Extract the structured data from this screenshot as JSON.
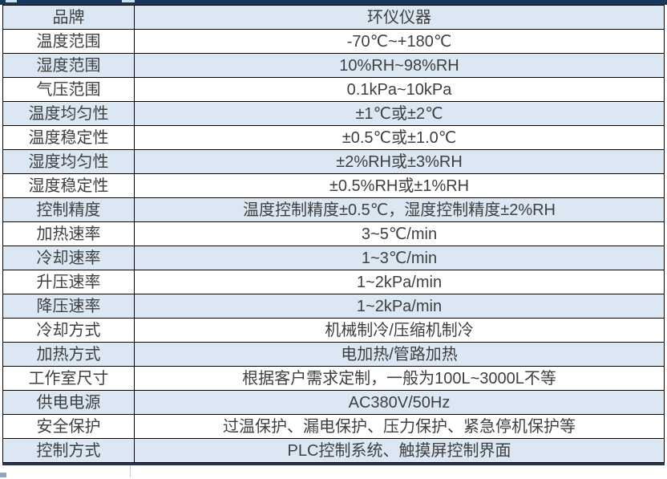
{
  "colors": {
    "banner_navy": "#17375e",
    "row_alt_blue": "#dbe8f4",
    "row_white": "#ffffff",
    "cell_border": "#000000",
    "text_gray": "#3f3f3f"
  },
  "table": {
    "rows": [
      {
        "label": "品牌",
        "value": "环仪仪器"
      },
      {
        "label": "温度范围",
        "value": "-70℃~+180℃"
      },
      {
        "label": "湿度范围",
        "value": "10%RH~98%RH"
      },
      {
        "label": "气压范围",
        "value": "0.1kPa~10kPa"
      },
      {
        "label": "温度均匀性",
        "value": "±1℃或±2℃"
      },
      {
        "label": "温度稳定性",
        "value": "±0.5℃或±1.0℃"
      },
      {
        "label": "湿度均匀性",
        "value": "±2%RH或±3%RH"
      },
      {
        "label": "湿度稳定性",
        "value": "±0.5%RH或±1%RH"
      },
      {
        "label": "控制精度",
        "value": "温度控制精度±0.5℃，湿度控制精度±2%RH"
      },
      {
        "label": "加热速率",
        "value": "3~5℃/min"
      },
      {
        "label": "冷却速率",
        "value": "1~3℃/min"
      },
      {
        "label": "升压速率",
        "value": "1~2kPa/min"
      },
      {
        "label": "降压速率",
        "value": "1~2kPa/min"
      },
      {
        "label": "冷却方式",
        "value": "机械制冷/压缩机制冷"
      },
      {
        "label": "加热方式",
        "value": "电加热/管路加热"
      },
      {
        "label": "工作室尺寸",
        "value": "根据客户需求定制，一般为100L~3000L不等"
      },
      {
        "label": "供电电源",
        "value": "AC380V/50Hz"
      },
      {
        "label": "安全保护",
        "value": "过温保护、漏电保护、压力保护、紧急停机保护等"
      },
      {
        "label": "控制方式",
        "value": "PLC控制系统、触摸屏控制界面"
      }
    ]
  }
}
